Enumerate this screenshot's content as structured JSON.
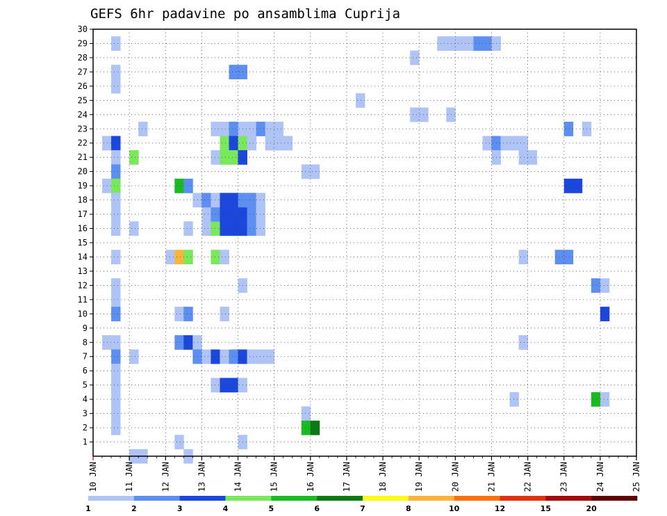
{
  "chart_data": {
    "type": "heatmap",
    "title": "GEFS 6hr padavine po ansamblima Cuprija",
    "x_ticks": [
      "10 JAN",
      "11 JAN",
      "12 JAN",
      "13 JAN",
      "14 JAN",
      "15 JAN",
      "16 JAN",
      "17 JAN",
      "18 JAN",
      "19 JAN",
      "20 JAN",
      "21 JAN",
      "22 JAN",
      "23 JAN",
      "24 JAN",
      "25 JAN"
    ],
    "y_ticks": [
      1,
      2,
      3,
      4,
      5,
      6,
      7,
      8,
      9,
      10,
      11,
      12,
      13,
      14,
      15,
      16,
      17,
      18,
      19,
      20,
      21,
      22,
      23,
      24,
      25,
      26,
      27,
      28,
      29,
      30
    ],
    "xlim": [
      "10 JAN",
      "25 JAN"
    ],
    "ylim": [
      0,
      30
    ],
    "step_hours": 6,
    "grid": true,
    "legend": {
      "placement": "bottom",
      "labels": [
        "1",
        "2",
        "3",
        "4",
        "5",
        "6",
        "7",
        "8",
        "10",
        "12",
        "15",
        "20"
      ],
      "colors": [
        "#afc4f5",
        "#5d8ff0",
        "#1c47dd",
        "#7ae85b",
        "#19bb21",
        "#0b7a12",
        "#fffb14",
        "#fbb33b",
        "#f8720d",
        "#e0310a",
        "#a50a0a",
        "#5e0000"
      ]
    },
    "cells_note": "each cell: [day offset from 10 JAN, member, category index]",
    "cells": [
      [
        0.625,
        29,
        0
      ],
      [
        0.625,
        27,
        0
      ],
      [
        0.625,
        26,
        0
      ],
      [
        0.375,
        22,
        0
      ],
      [
        0.625,
        22,
        2
      ],
      [
        0.625,
        21,
        0
      ],
      [
        1.125,
        21,
        3
      ],
      [
        0.625,
        20,
        1
      ],
      [
        0.375,
        19,
        0
      ],
      [
        0.625,
        19,
        3
      ],
      [
        0.625,
        18,
        0
      ],
      [
        0.625,
        17,
        0
      ],
      [
        0.625,
        16,
        0
      ],
      [
        1.125,
        16,
        0
      ],
      [
        0.625,
        14,
        0
      ],
      [
        0.625,
        12,
        0
      ],
      [
        0.625,
        11,
        0
      ],
      [
        0.625,
        10,
        1
      ],
      [
        0.375,
        8,
        0
      ],
      [
        0.625,
        8,
        0
      ],
      [
        0.625,
        7,
        1
      ],
      [
        1.125,
        7,
        0
      ],
      [
        0.625,
        6,
        0
      ],
      [
        0.625,
        5,
        0
      ],
      [
        0.625,
        4,
        0
      ],
      [
        0.625,
        3,
        0
      ],
      [
        0.625,
        2,
        0
      ],
      [
        1.125,
        0,
        0
      ],
      [
        1.375,
        0,
        0
      ],
      [
        1.375,
        23,
        0
      ],
      [
        2.375,
        19,
        4
      ],
      [
        2.625,
        19,
        1
      ],
      [
        2.125,
        14,
        0
      ],
      [
        2.375,
        14,
        7
      ],
      [
        2.625,
        14,
        3
      ],
      [
        2.375,
        10,
        0
      ],
      [
        2.625,
        10,
        1
      ],
      [
        2.375,
        8,
        1
      ],
      [
        2.625,
        8,
        2
      ],
      [
        2.875,
        8,
        0
      ],
      [
        2.875,
        7,
        1
      ],
      [
        3.125,
        7,
        0
      ],
      [
        3.375,
        7,
        2
      ],
      [
        3.625,
        7,
        0
      ],
      [
        3.875,
        7,
        1
      ],
      [
        4.125,
        7,
        2
      ],
      [
        4.375,
        7,
        0
      ],
      [
        4.625,
        7,
        0
      ],
      [
        4.875,
        7,
        0
      ],
      [
        2.375,
        1,
        0
      ],
      [
        2.625,
        0,
        0
      ],
      [
        2.625,
        16,
        0
      ],
      [
        3.125,
        16,
        0
      ],
      [
        3.375,
        16,
        3
      ],
      [
        3.625,
        16,
        2
      ],
      [
        3.875,
        16,
        2
      ],
      [
        4.125,
        16,
        2
      ],
      [
        4.375,
        16,
        1
      ],
      [
        4.625,
        16,
        0
      ],
      [
        3.125,
        17,
        0
      ],
      [
        3.375,
        17,
        1
      ],
      [
        3.625,
        17,
        2
      ],
      [
        3.875,
        17,
        2
      ],
      [
        4.125,
        17,
        2
      ],
      [
        4.375,
        17,
        1
      ],
      [
        4.625,
        17,
        0
      ],
      [
        2.875,
        18,
        0
      ],
      [
        3.125,
        18,
        1
      ],
      [
        3.375,
        18,
        0
      ],
      [
        3.625,
        18,
        2
      ],
      [
        3.875,
        18,
        2
      ],
      [
        4.125,
        18,
        1
      ],
      [
        4.375,
        18,
        1
      ],
      [
        4.625,
        18,
        0
      ],
      [
        3.375,
        14,
        3
      ],
      [
        3.625,
        14,
        0
      ],
      [
        3.625,
        10,
        0
      ],
      [
        3.375,
        5,
        0
      ],
      [
        3.625,
        5,
        2
      ],
      [
        3.875,
        5,
        2
      ],
      [
        4.125,
        5,
        0
      ],
      [
        3.875,
        27,
        1
      ],
      [
        4.125,
        27,
        1
      ],
      [
        3.375,
        23,
        0
      ],
      [
        3.625,
        23,
        0
      ],
      [
        3.875,
        23,
        1
      ],
      [
        4.125,
        23,
        0
      ],
      [
        4.375,
        23,
        0
      ],
      [
        4.625,
        23,
        1
      ],
      [
        4.875,
        23,
        0
      ],
      [
        5.125,
        23,
        0
      ],
      [
        3.625,
        22,
        3
      ],
      [
        3.875,
        22,
        2
      ],
      [
        4.125,
        22,
        3
      ],
      [
        4.375,
        22,
        0
      ],
      [
        4.875,
        22,
        0
      ],
      [
        5.125,
        22,
        0
      ],
      [
        5.375,
        22,
        0
      ],
      [
        3.375,
        21,
        0
      ],
      [
        3.625,
        21,
        3
      ],
      [
        3.875,
        21,
        3
      ],
      [
        4.125,
        21,
        2
      ],
      [
        4.125,
        12,
        0
      ],
      [
        4.125,
        1,
        0
      ],
      [
        5.875,
        20,
        0
      ],
      [
        6.125,
        20,
        0
      ],
      [
        5.875,
        3,
        0
      ],
      [
        5.875,
        2,
        4
      ],
      [
        6.125,
        2,
        5
      ],
      [
        7.375,
        25,
        0
      ],
      [
        8.875,
        28,
        0
      ],
      [
        8.875,
        24,
        0
      ],
      [
        9.125,
        24,
        0
      ],
      [
        9.875,
        24,
        0
      ],
      [
        9.625,
        29,
        0
      ],
      [
        9.875,
        29,
        0
      ],
      [
        10.125,
        29,
        0
      ],
      [
        10.375,
        29,
        0
      ],
      [
        10.625,
        29,
        1
      ],
      [
        10.875,
        29,
        1
      ],
      [
        11.125,
        29,
        0
      ],
      [
        10.875,
        22,
        0
      ],
      [
        11.125,
        22,
        1
      ],
      [
        11.375,
        22,
        0
      ],
      [
        11.625,
        22,
        0
      ],
      [
        11.875,
        22,
        0
      ],
      [
        11.125,
        21,
        0
      ],
      [
        11.875,
        21,
        0
      ],
      [
        12.125,
        21,
        0
      ],
      [
        11.875,
        14,
        0
      ],
      [
        11.875,
        8,
        0
      ],
      [
        11.625,
        4,
        0
      ],
      [
        12.875,
        14,
        1
      ],
      [
        13.125,
        14,
        1
      ],
      [
        13.125,
        23,
        1
      ],
      [
        13.625,
        23,
        0
      ],
      [
        13.125,
        19,
        2
      ],
      [
        13.375,
        19,
        2
      ],
      [
        13.875,
        12,
        1
      ],
      [
        14.125,
        12,
        0
      ],
      [
        14.125,
        10,
        2
      ],
      [
        13.875,
        4,
        4
      ],
      [
        14.125,
        4,
        0
      ]
    ]
  }
}
